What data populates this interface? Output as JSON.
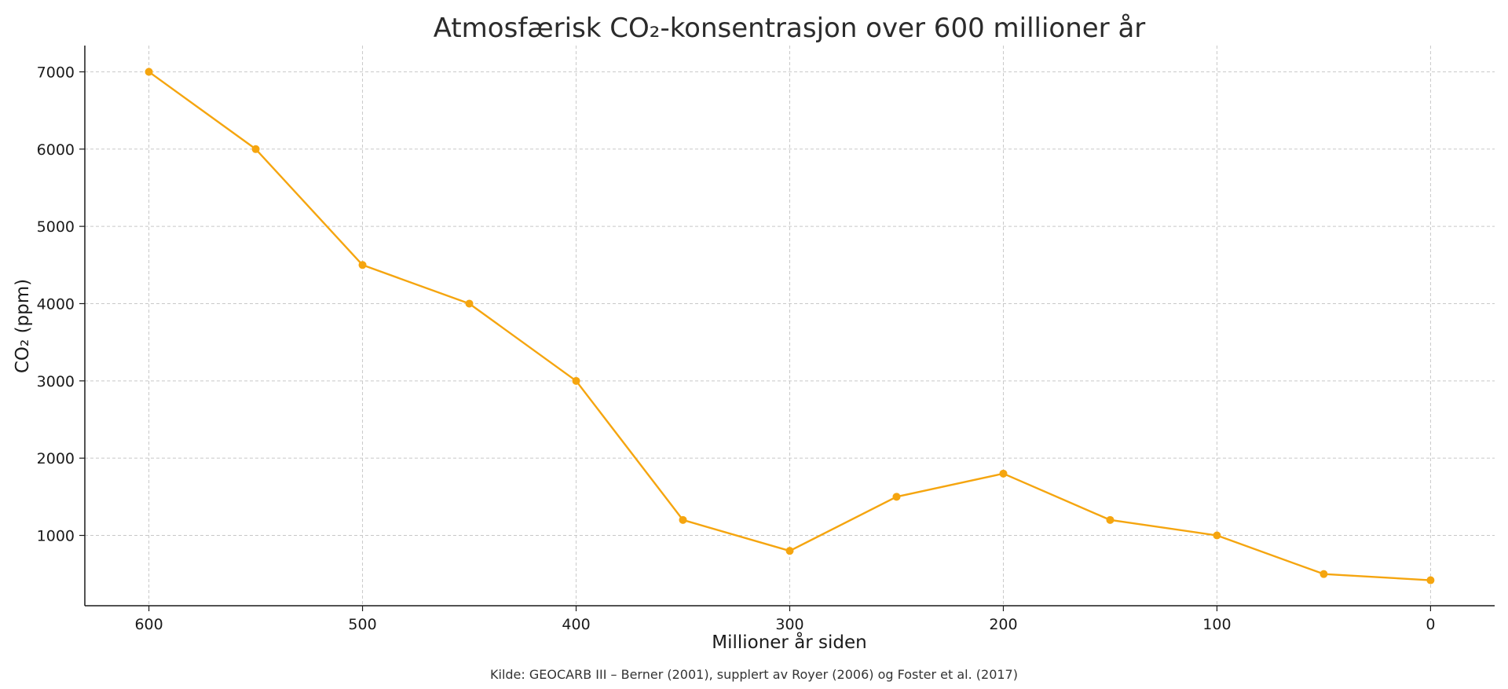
{
  "colors": {
    "line": "#f5a50f",
    "grid": "#c8c8c8",
    "axis": "#1a1a1a"
  },
  "chart_data": {
    "type": "line",
    "title": "Atmosfærisk CO₂-konsentrasjon over 600 millioner år",
    "xlabel": "Millioner år siden",
    "ylabel": "CO₂ (ppm)",
    "source": "Kilde: GEOCARB III – Berner (2001), supplert av Royer (2006) og Foster et al. (2017)",
    "x_reversed": true,
    "xlim": [
      630,
      -30
    ],
    "ylim": [
      90,
      7340
    ],
    "grid": true,
    "x_ticks": [
      600,
      500,
      400,
      300,
      200,
      100,
      0
    ],
    "y_ticks": [
      1000,
      2000,
      3000,
      4000,
      5000,
      6000,
      7000
    ],
    "series": [
      {
        "x": [
          600,
          550,
          500,
          450,
          400,
          350,
          300,
          250,
          200,
          150,
          100,
          50,
          0
        ],
        "y": [
          7000,
          6000,
          4500,
          4000,
          3000,
          1200,
          800,
          1500,
          1800,
          1200,
          1000,
          500,
          420
        ]
      }
    ]
  }
}
